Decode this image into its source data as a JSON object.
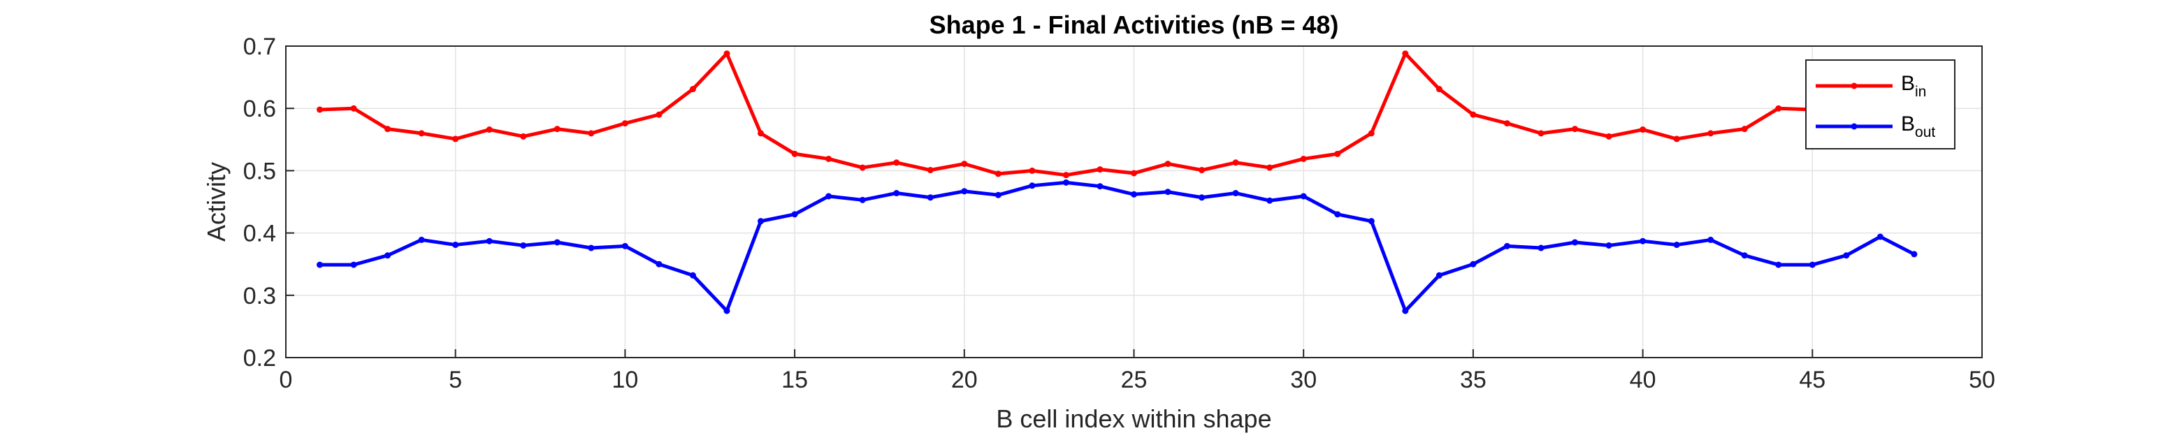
{
  "chart_data": {
    "type": "line",
    "title": "Shape 1 - Final Activities (nB = 48)",
    "xlabel": "B cell index within shape",
    "ylabel": "Activity",
    "xlim": [
      0,
      50
    ],
    "ylim": [
      0.2,
      0.7
    ],
    "xticks": [
      0,
      5,
      10,
      15,
      20,
      25,
      30,
      35,
      40,
      45,
      50
    ],
    "xtick_labels": [
      "0",
      "5",
      "10",
      "15",
      "20",
      "25",
      "30",
      "35",
      "40",
      "45",
      "50"
    ],
    "yticks": [
      0.2,
      0.3,
      0.4,
      0.5,
      0.6,
      0.7
    ],
    "ytick_labels": [
      "0.2",
      "0.3",
      "0.4",
      "0.5",
      "0.6",
      "0.7"
    ],
    "grid": true,
    "legend_position": "top-right",
    "x": [
      1,
      2,
      3,
      4,
      5,
      6,
      7,
      8,
      9,
      10,
      11,
      12,
      13,
      14,
      15,
      16,
      17,
      18,
      19,
      20,
      21,
      22,
      23,
      24,
      25,
      26,
      27,
      28,
      29,
      30,
      31,
      32,
      33,
      34,
      35,
      36,
      37,
      38,
      39,
      40,
      41,
      42,
      43,
      44,
      45,
      46,
      47,
      48
    ],
    "series": [
      {
        "name": "B",
        "name_subscript": "in",
        "color": "#ff0000",
        "values": [
          0.598,
          0.6,
          0.567,
          0.56,
          0.551,
          0.566,
          0.555,
          0.567,
          0.56,
          0.576,
          0.59,
          0.631,
          0.688,
          0.56,
          0.527,
          0.519,
          0.505,
          0.513,
          0.501,
          0.511,
          0.495,
          0.5,
          0.493,
          0.502,
          0.496,
          0.511,
          0.501,
          0.513,
          0.505,
          0.519,
          0.527,
          0.56,
          0.688,
          0.631,
          0.59,
          0.576,
          0.56,
          0.567,
          0.555,
          0.566,
          0.551,
          0.56,
          0.567,
          0.6,
          0.598,
          0.6,
          0.6,
          0.6
        ]
      },
      {
        "name": "B",
        "name_subscript": "out",
        "color": "#0000ff",
        "values": [
          0.349,
          0.349,
          0.364,
          0.389,
          0.381,
          0.387,
          0.38,
          0.385,
          0.376,
          0.379,
          0.35,
          0.332,
          0.275,
          0.419,
          0.43,
          0.459,
          0.453,
          0.464,
          0.457,
          0.467,
          0.461,
          0.476,
          0.481,
          0.475,
          0.462,
          0.466,
          0.457,
          0.464,
          0.452,
          0.459,
          0.43,
          0.419,
          0.275,
          0.332,
          0.35,
          0.379,
          0.376,
          0.385,
          0.38,
          0.387,
          0.381,
          0.389,
          0.364,
          0.349,
          0.349,
          0.364,
          0.394,
          0.366
        ]
      }
    ]
  }
}
